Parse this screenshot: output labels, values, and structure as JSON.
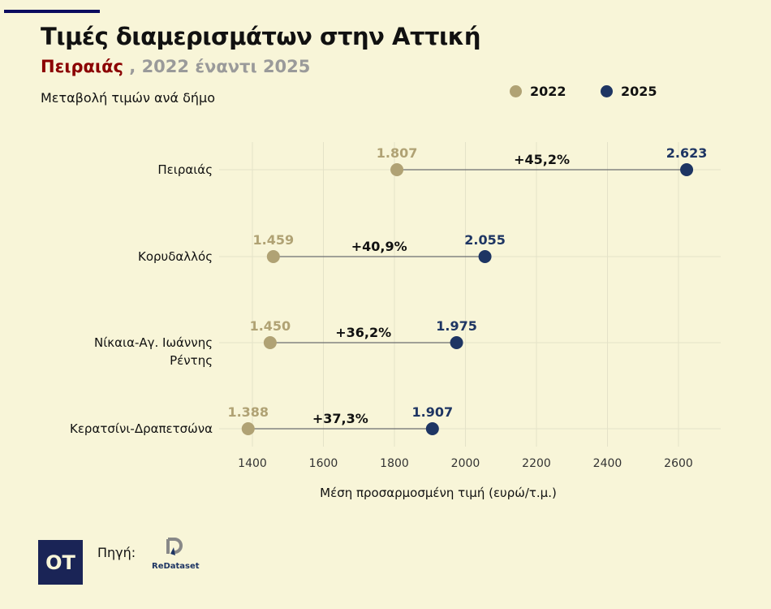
{
  "title": "Τιμές διαμερισμάτων στην Αττική",
  "subtitle_highlight": "Πειραιάς",
  "subtitle_rest": " , 2022 έναντι 2025",
  "caption": "Μεταβολή τιμών ανά δήμο",
  "colors": {
    "y2022": "#b0a274",
    "y2025": "#1e3563",
    "accent": "#8b0000"
  },
  "chart_data": {
    "type": "dumbbell",
    "xlabel": "Μέση προσαρμοσμένη τιμή (ευρώ/τ.μ.)",
    "xlim": [
      1300,
      2720
    ],
    "xticks": [
      1400,
      1600,
      1800,
      2000,
      2200,
      2400,
      2600
    ],
    "grid": true,
    "legend": "top-right",
    "series_names": [
      "2022",
      "2025"
    ],
    "categories": [
      "Πειραιάς",
      "Κορυδαλλός",
      "Νίκαια-Αγ. Ιωάννης Ρέντης",
      "Κερατσίνι-Δραπετσώνα"
    ],
    "rows": [
      {
        "label": [
          "Πειραιάς"
        ],
        "v2022": 1807,
        "v2025": 2623,
        "l2022": "1.807",
        "l2025": "2.623",
        "change": "+45,2%"
      },
      {
        "label": [
          "Κορυδαλλός"
        ],
        "v2022": 1459,
        "v2025": 2055,
        "l2022": "1.459",
        "l2025": "2.055",
        "change": "+40,9%"
      },
      {
        "label": [
          "Νίκαια-Αγ. Ιωάννης",
          "Ρέντης"
        ],
        "v2022": 1450,
        "v2025": 1975,
        "l2022": "1.450",
        "l2025": "1.975",
        "change": "+36,2%"
      },
      {
        "label": [
          "Κερατσίνι-Δραπετσώνα"
        ],
        "v2022": 1388,
        "v2025": 1907,
        "l2022": "1.388",
        "l2025": "1.907",
        "change": "+37,3%"
      }
    ]
  },
  "footer": {
    "brand": "OT",
    "source_label": "Πηγή:",
    "source_logo": "ReDataset"
  }
}
